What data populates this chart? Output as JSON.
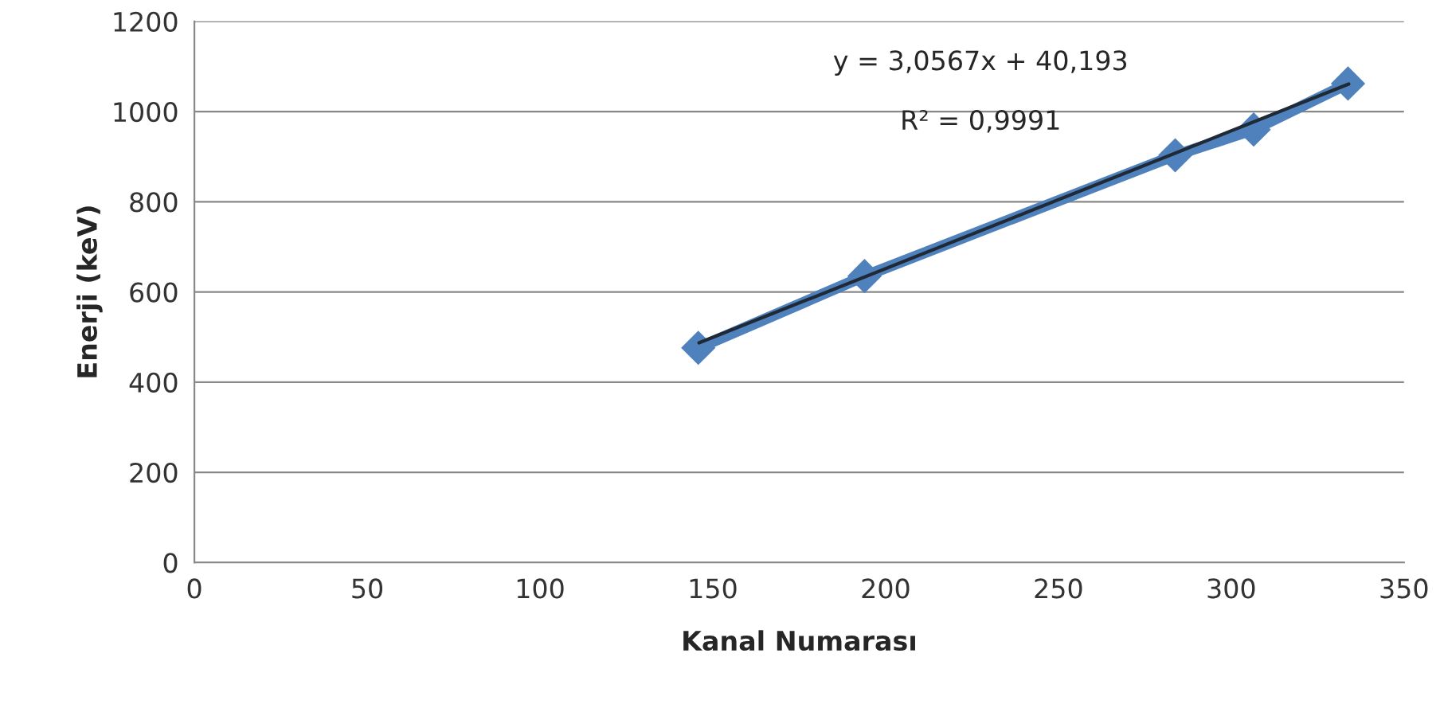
{
  "chart_data": {
    "type": "line",
    "xlabel": "Kanal Numarası",
    "ylabel": "Enerji (keV)",
    "series": [
      {
        "color": "#4f81bd",
        "x": [
          145.8,
          193.9,
          283.8,
          306.5,
          333.8
        ],
        "values": [
          476,
          635,
          903,
          960,
          1062
        ],
        "marker": "diamond"
      },
      {
        "color": "#1f2a36",
        "x": [
          146,
          334
        ],
        "values": [
          487,
          1061
        ],
        "marker": "none"
      }
    ],
    "xlim": [
      0,
      350
    ],
    "xticks": [
      0,
      50,
      100,
      150,
      200,
      250,
      300,
      350
    ],
    "ylim": [
      0,
      1200
    ],
    "yticks": [
      0,
      200,
      400,
      600,
      800,
      1000,
      1200
    ],
    "grid": "y",
    "legend": false,
    "annotations": [
      "y = 3,0567x + 40,193",
      "R² = 0,9991"
    ]
  }
}
